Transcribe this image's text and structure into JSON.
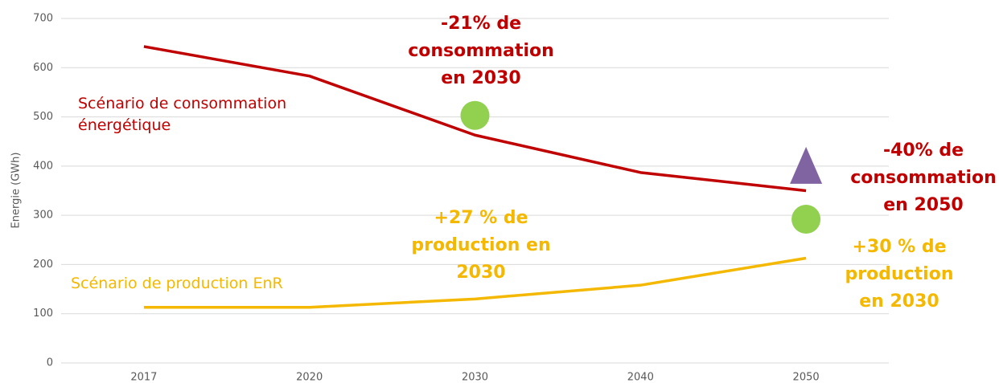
{
  "chart_data": {
    "type": "line",
    "y_label": "Energie (GWh)",
    "categories": [
      "2017",
      "2020",
      "2030",
      "2040",
      "2050"
    ],
    "series": [
      {
        "name": "Scénario de consommation énergétique",
        "color": "#c00000",
        "values": [
          643,
          583,
          463,
          387,
          350
        ]
      },
      {
        "name": "Scénario de production EnR",
        "color": "#f5b800",
        "values": [
          113,
          113,
          130,
          158,
          213
        ]
      }
    ],
    "markers": [
      {
        "category": "2030",
        "value": 503,
        "shape": "circle",
        "color": "#92d050"
      },
      {
        "category": "2050",
        "value": 292,
        "shape": "circle",
        "color": "#92d050"
      },
      {
        "category": "2050",
        "value": 400,
        "shape": "triangle",
        "color": "#8064a2"
      }
    ],
    "annotations": [
      {
        "lines": [
          "-21% de",
          "consommation",
          "en 2030"
        ],
        "color": "#c00000"
      },
      {
        "lines": [
          "-40% de",
          "consommation",
          "en 2050"
        ],
        "color": "#c00000"
      },
      {
        "lines": [
          "+27 % de",
          "production en",
          "2030"
        ],
        "color": "#f5b800"
      },
      {
        "lines": [
          "+30 % de",
          "production",
          "en 2030"
        ],
        "color": "#f5b800"
      }
    ],
    "ylim": [
      0,
      700
    ],
    "yticks": [
      0,
      100,
      200,
      300,
      400,
      500,
      600,
      700
    ],
    "grid": true
  }
}
